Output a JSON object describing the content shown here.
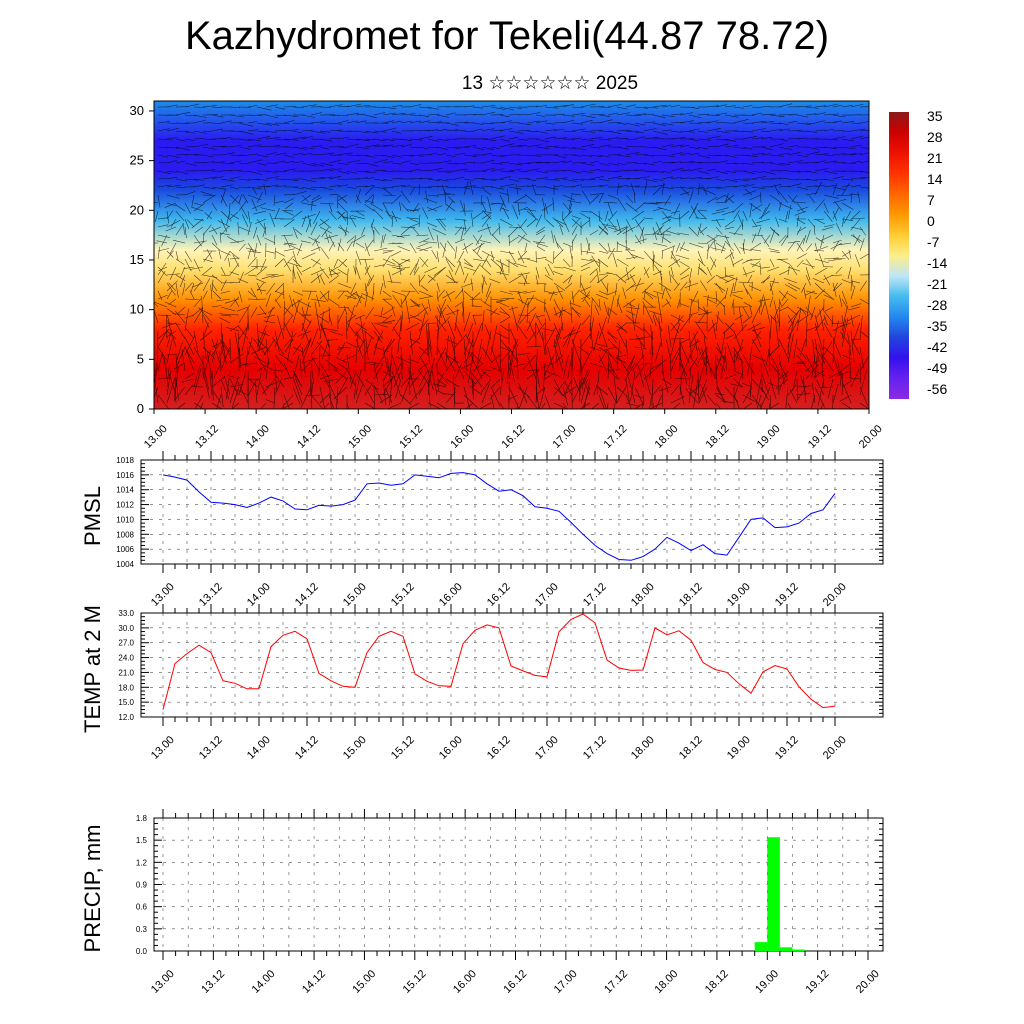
{
  "title": "Kazhydromet for Tekeli(44.87 78.72)",
  "subtitle": "13 ☆☆☆☆☆☆ 2025",
  "time_ticks": [
    "13.00",
    "13.12",
    "14.00",
    "14.12",
    "15.00",
    "15.12",
    "16.00",
    "16.12",
    "17.00",
    "17.12",
    "18.00",
    "18.12",
    "19.00",
    "19.12",
    "20.00"
  ],
  "colors": {
    "pmsl_line": "#0000ff",
    "temp_line": "#ff0000",
    "precip_bar": "#00ff00",
    "colorbar": [
      "#8b1a1a",
      "#cc0000",
      "#ee1100",
      "#ff3300",
      "#ff6600",
      "#ff9900",
      "#ffcc33",
      "#ffee88",
      "#bfe6f5",
      "#44bbee",
      "#2288ee",
      "#2244dd",
      "#3311ee",
      "#6622ee",
      "#8a2be2"
    ]
  },
  "chart_data": [
    {
      "type": "heatmap",
      "title": "",
      "xlabel": "",
      "ylabel": "",
      "ylim": [
        0,
        31
      ],
      "y_ticks": [
        0,
        5,
        10,
        15,
        20,
        25,
        30
      ],
      "x_ticks": [
        "13.00",
        "13.12",
        "14.00",
        "14.12",
        "15.00",
        "15.12",
        "16.00",
        "16.12",
        "17.00",
        "17.12",
        "18.00",
        "18.12",
        "19.00",
        "19.12",
        "20.00"
      ],
      "colorbar_labels": [
        "35",
        "28",
        "21",
        "14",
        "7",
        "0",
        "-7",
        "-14",
        "-21",
        "-28",
        "-35",
        "-42",
        "-49",
        "-56"
      ],
      "levels_profile": [
        {
          "level": 0,
          "value": 30
        },
        {
          "level": 4,
          "value": 24
        },
        {
          "level": 8,
          "value": 14
        },
        {
          "level": 11,
          "value": 5
        },
        {
          "level": 14,
          "value": -8
        },
        {
          "level": 16,
          "value": -16
        },
        {
          "level": 19,
          "value": -30
        },
        {
          "level": 22,
          "value": -45
        },
        {
          "level": 24,
          "value": -55
        },
        {
          "level": 27,
          "value": -50
        },
        {
          "level": 31,
          "value": -42
        }
      ],
      "wind_barbs": true
    },
    {
      "type": "line",
      "ylabel": "PMSL",
      "ylim": [
        1004,
        1018
      ],
      "y_ticks": [
        "1004",
        "1006",
        "1008",
        "1010",
        "1012",
        "1014",
        "1016",
        "1018"
      ],
      "x_ticks": [
        "13.00",
        "13.12",
        "14.00",
        "14.12",
        "15.00",
        "15.12",
        "16.00",
        "16.12",
        "17.00",
        "17.12",
        "18.00",
        "18.12",
        "19.00",
        "19.12",
        "20.00"
      ],
      "x": [
        0,
        3,
        6,
        9,
        12,
        15,
        18,
        21,
        24,
        27,
        30,
        33,
        36,
        39,
        42,
        45,
        48,
        51,
        54,
        57,
        60,
        63,
        66,
        69,
        72,
        75,
        78,
        81,
        84,
        87,
        90,
        93,
        96,
        99,
        102,
        105,
        108,
        111,
        114,
        117,
        120,
        123,
        126,
        129,
        132,
        135,
        138,
        141,
        144,
        147,
        150,
        153,
        156,
        159,
        162,
        165,
        168
      ],
      "series": [
        {
          "values": [
            1016,
            1015.7,
            1015.3,
            1013.7,
            1012.3,
            1012.2,
            1012,
            1011.6,
            1012.2,
            1013,
            1012.5,
            1011.4,
            1011.3,
            1011.9,
            1011.8,
            1012,
            1012.6,
            1014.8,
            1014.9,
            1014.6,
            1014.8,
            1016,
            1015.8,
            1015.6,
            1016.2,
            1016.3,
            1016,
            1014.8,
            1013.8,
            1014,
            1013.2,
            1011.7,
            1011.5,
            1011.1,
            1009.6,
            1008,
            1006.5,
            1005.4,
            1004.6,
            1004.5,
            1005,
            1006,
            1007.6,
            1006.8,
            1005.8,
            1006.6,
            1005.4,
            1005.2,
            1007.6,
            1010,
            1010.2,
            1008.9,
            1009,
            1009.5,
            1010.8,
            1011.3,
            1013.5
          ]
        }
      ]
    },
    {
      "type": "line",
      "ylabel": "TEMP at 2 M",
      "ylim": [
        12,
        33
      ],
      "y_ticks": [
        "12.0",
        "15.0",
        "18.0",
        "21.0",
        "24.0",
        "27.0",
        "30.0",
        "33.0"
      ],
      "x_ticks": [
        "13.00",
        "13.12",
        "14.00",
        "14.12",
        "15.00",
        "15.12",
        "16.00",
        "16.12",
        "17.00",
        "17.12",
        "18.00",
        "18.12",
        "19.00",
        "19.12",
        "20.00"
      ],
      "x": [
        0,
        3,
        6,
        9,
        12,
        15,
        18,
        21,
        24,
        27,
        30,
        33,
        36,
        39,
        42,
        45,
        48,
        51,
        54,
        57,
        60,
        63,
        66,
        69,
        72,
        75,
        78,
        81,
        84,
        87,
        90,
        93,
        96,
        99,
        102,
        105,
        108,
        111,
        114,
        117,
        120,
        123,
        126,
        129,
        132,
        135,
        138,
        141,
        144,
        147,
        150,
        153,
        156,
        159,
        162,
        165,
        168
      ],
      "series": [
        {
          "values": [
            13.5,
            22.8,
            24.8,
            26.5,
            25,
            19.3,
            18.8,
            17.7,
            17.7,
            26.2,
            28.5,
            29.3,
            27.8,
            20.8,
            19.3,
            18.2,
            18,
            25,
            28.3,
            29.3,
            28.3,
            20.7,
            19.2,
            18.3,
            18.2,
            26.8,
            29.5,
            30.6,
            30,
            22.3,
            21.3,
            20.4,
            20.1,
            29.2,
            31.7,
            32.8,
            31,
            23.5,
            21.9,
            21.4,
            21.5,
            30,
            28.6,
            29.4,
            27.5,
            23,
            21.6,
            21,
            18.7,
            16.8,
            21.1,
            22.4,
            21.7,
            18.1,
            15.6,
            13.9,
            14.2
          ]
        }
      ]
    },
    {
      "type": "bar",
      "ylabel": "PRECIP, mm",
      "ylim": [
        0,
        1.8
      ],
      "y_ticks": [
        "0.0",
        "0.3",
        "0.6",
        "0.9",
        "1.2",
        "1.5",
        "1.8"
      ],
      "x_ticks": [
        "13.00",
        "13.12",
        "14.00",
        "14.12",
        "15.00",
        "15.12",
        "16.00",
        "16.12",
        "17.00",
        "17.12",
        "18.00",
        "18.12",
        "19.00",
        "19.12",
        "20.00"
      ],
      "bars": [
        {
          "t": 142.5,
          "value": 0.12
        },
        {
          "t": 145.5,
          "value": 1.54
        },
        {
          "t": 148.5,
          "value": 0.05
        },
        {
          "t": 151.5,
          "value": 0.02
        }
      ],
      "bar_width_hours": 3
    }
  ]
}
